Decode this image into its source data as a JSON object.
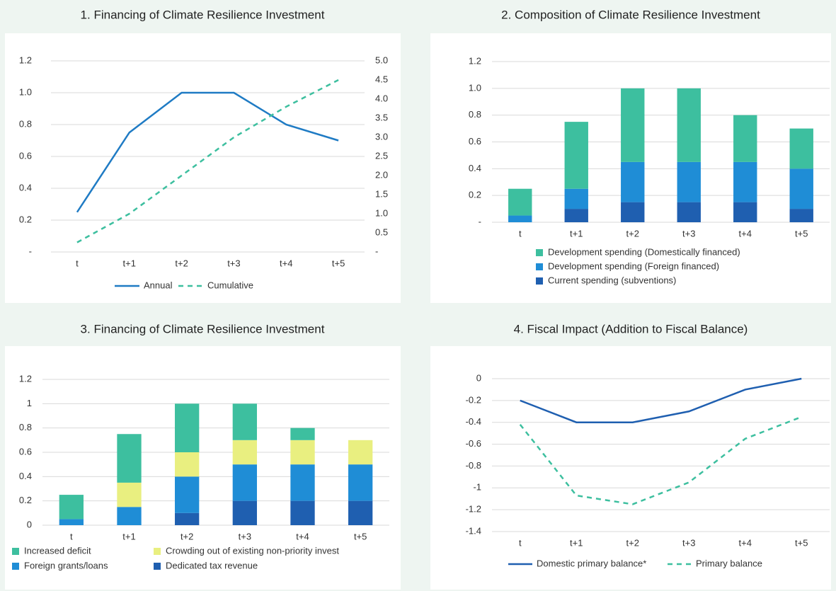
{
  "chart_data": [
    {
      "type": "line",
      "title": "1. Financing of Climate Resilience Investment",
      "categories": [
        "t",
        "t+1",
        "t+2",
        "t+3",
        "t+4",
        "t+5"
      ],
      "series": [
        {
          "name": "Annual",
          "color": "#1f7bc4",
          "values": [
            0.25,
            0.75,
            1.0,
            1.0,
            0.8,
            0.7
          ]
        },
        {
          "name": "Cumulative",
          "color": "#3dbf9f",
          "dashed": true,
          "axis": "y2",
          "values": [
            0.25,
            1.0,
            2.0,
            3.0,
            3.8,
            4.5
          ]
        }
      ],
      "ylim": [
        0,
        1.2
      ],
      "yticks": [
        {
          "value": 0,
          "label": "-"
        },
        0.2,
        0.4,
        0.6,
        0.8,
        {
          "value": 1,
          "label": "1.0"
        },
        1.2
      ],
      "y2lim": [
        0,
        5
      ],
      "y2ticks": [
        {
          "value": 0,
          "label": "-"
        },
        0.5,
        {
          "value": 1,
          "label": "1.0"
        },
        1.5,
        {
          "value": 2,
          "label": "2.0"
        },
        2.5,
        {
          "value": 3,
          "label": "3.0"
        },
        3.5,
        {
          "value": 4,
          "label": "4.0"
        },
        4.5,
        {
          "value": 5,
          "label": "5.0"
        }
      ],
      "grid": true,
      "legend": "bottom"
    },
    {
      "type": "stacked_bar",
      "title": "2. Composition of Climate Resilience Investment",
      "categories": [
        "t",
        "t+1",
        "t+2",
        "t+3",
        "t+4",
        "t+5"
      ],
      "series": [
        {
          "name": "Development spending (Domestically financed)",
          "color": "#3dbf9f",
          "values": [
            0.2,
            0.5,
            0.55,
            0.55,
            0.35,
            0.3
          ]
        },
        {
          "name": "Development spending (Foreign financed)",
          "color": "#1f8dd6",
          "values": [
            0.05,
            0.15,
            0.3,
            0.3,
            0.3,
            0.3
          ]
        },
        {
          "name": "Current spending (subventions)",
          "color": "#1f5fb0",
          "values": [
            0,
            0.1,
            0.15,
            0.15,
            0.15,
            0.1
          ]
        }
      ],
      "ylim": [
        0,
        1.2
      ],
      "yticks": [
        {
          "value": 0,
          "label": "-"
        },
        0.2,
        0.4,
        0.6,
        0.8,
        {
          "value": 1,
          "label": "1.0"
        },
        1.2
      ],
      "grid": true,
      "legend": "bottom"
    },
    {
      "type": "stacked_bar",
      "title": "3. Financing of Climate Resilience Investment",
      "categories": [
        "t",
        "t+1",
        "t+2",
        "t+3",
        "t+4",
        "t+5"
      ],
      "series": [
        {
          "name": "Increased deficit",
          "color": "#3dbf9f",
          "values": [
            0.2,
            0.4,
            0.4,
            0.3,
            0.1,
            0
          ]
        },
        {
          "name": "Crowding out of existing non-priority invest",
          "color": "#e9ef80",
          "values": [
            0,
            0.2,
            0.2,
            0.2,
            0.2,
            0.2
          ]
        },
        {
          "name": "Foreign grants/loans",
          "color": "#1f8dd6",
          "values": [
            0.05,
            0.15,
            0.3,
            0.3,
            0.3,
            0.3
          ]
        },
        {
          "name": "Dedicated tax revenue",
          "color": "#1f5fb0",
          "values": [
            0,
            0,
            0.1,
            0.2,
            0.2,
            0.2
          ]
        }
      ],
      "ylim": [
        0,
        1.2
      ],
      "yticks": [
        0,
        0.2,
        0.4,
        0.6,
        0.8,
        1,
        1.2
      ],
      "grid": true,
      "legend": "bottom"
    },
    {
      "type": "line",
      "title": "4. Fiscal Impact (Addition to Fiscal Balance)",
      "categories": [
        "t",
        "t+1",
        "t+2",
        "t+3",
        "t+4",
        "t+5"
      ],
      "series": [
        {
          "name": "Domestic primary balance*",
          "color": "#1f5fb0",
          "values": [
            -0.2,
            -0.4,
            -0.4,
            -0.3,
            -0.1,
            0
          ]
        },
        {
          "name": "Primary balance",
          "color": "#3dbf9f",
          "dashed": true,
          "values": [
            -0.42,
            -1.07,
            -1.15,
            -0.95,
            -0.55,
            -0.35
          ]
        }
      ],
      "ylim": [
        -1.4,
        0
      ],
      "yticks": [
        0,
        -0.2,
        -0.4,
        -0.6,
        -0.8,
        -1,
        -1.2,
        -1.4
      ],
      "grid": true,
      "legend": "bottom"
    }
  ]
}
